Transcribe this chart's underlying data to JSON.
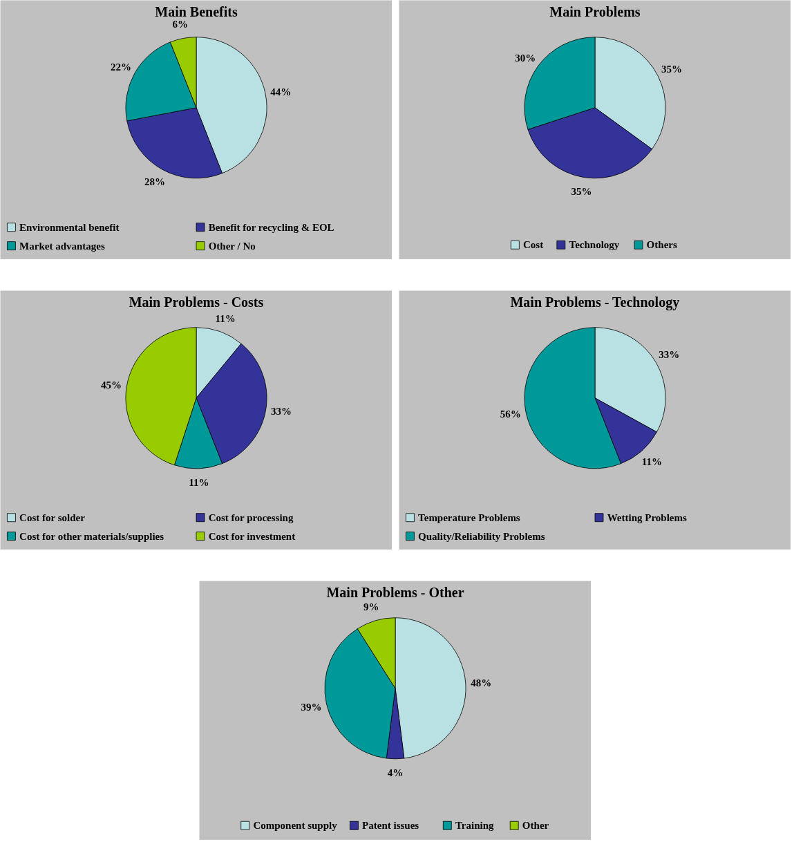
{
  "chart_data": [
    {
      "type": "pie",
      "title": "Main Benefits",
      "categories": [
        "Environmental benefit",
        "Benefit for recycling & EOL",
        "Market advantages",
        "Other / No"
      ],
      "values": [
        44,
        28,
        22,
        6
      ],
      "value_labels": [
        "44%",
        "28%",
        "22%",
        "6%"
      ],
      "colors": [
        "#b9e1e4",
        "#333399",
        "#009999",
        "#99cc00"
      ],
      "legend": "bottom"
    },
    {
      "type": "pie",
      "title": "Main Problems",
      "categories": [
        "Cost",
        "Technology",
        "Others"
      ],
      "values": [
        35,
        35,
        30
      ],
      "value_labels": [
        "35%",
        "35%",
        "30%"
      ],
      "colors": [
        "#b9e1e4",
        "#333399",
        "#009999"
      ],
      "legend": "bottom"
    },
    {
      "type": "pie",
      "title": "Main Problems - Costs",
      "categories": [
        "Cost for solder",
        "Cost for processing",
        "Cost for other materials/supplies",
        "Cost for investment"
      ],
      "values": [
        11,
        33,
        11,
        45
      ],
      "value_labels": [
        "11%",
        "33%",
        "11%",
        "45%"
      ],
      "colors": [
        "#b9e1e4",
        "#333399",
        "#009999",
        "#99cc00"
      ],
      "legend": "bottom"
    },
    {
      "type": "pie",
      "title": "Main Problems - Technology",
      "categories": [
        "Temperature Problems",
        "Wetting Problems",
        "Quality/Reliability Problems"
      ],
      "values": [
        33,
        11,
        56
      ],
      "value_labels": [
        "33%",
        "11%",
        "56%"
      ],
      "colors": [
        "#b9e1e4",
        "#333399",
        "#009999"
      ],
      "legend": "bottom"
    },
    {
      "type": "pie",
      "title": "Main Problems - Other",
      "categories": [
        "Component supply",
        "Patent issues",
        "Training",
        "Other"
      ],
      "values": [
        48,
        4,
        39,
        9
      ],
      "value_labels": [
        "48%",
        "4%",
        "39%",
        "9%"
      ],
      "colors": [
        "#b9e1e4",
        "#333399",
        "#009999",
        "#99cc00"
      ],
      "legend": "bottom"
    }
  ]
}
